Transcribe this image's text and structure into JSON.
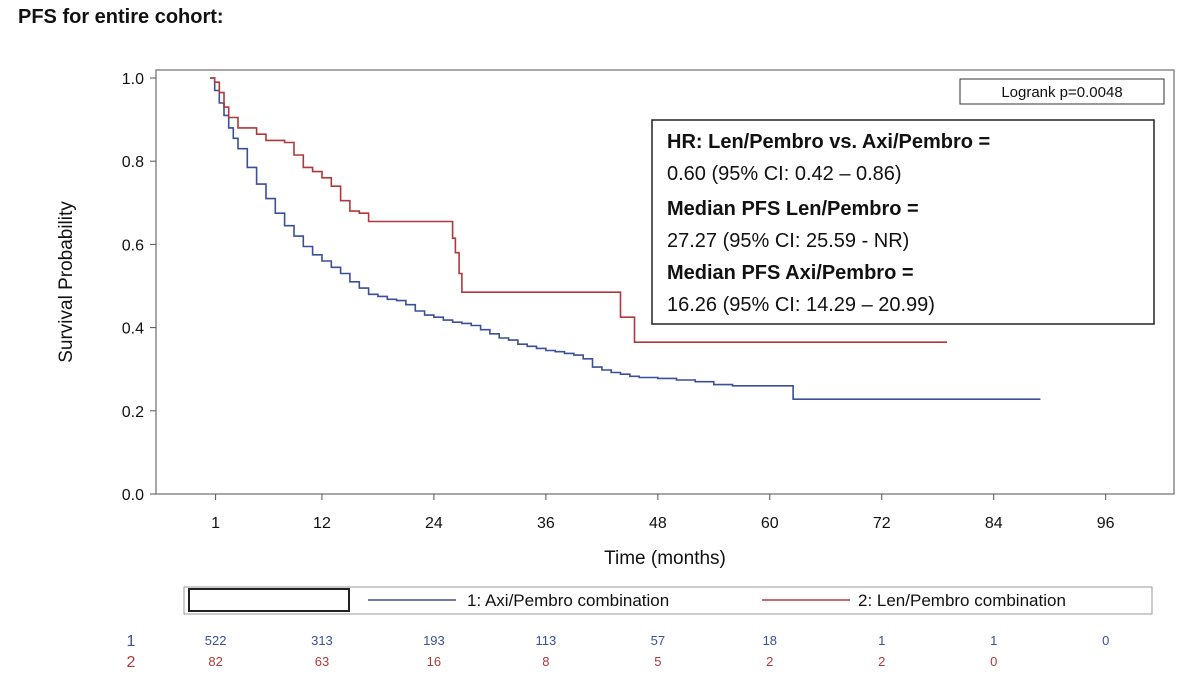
{
  "page": {
    "title": "PFS for entire cohort:"
  },
  "chart_data": {
    "type": "line",
    "title": "PFS for entire cohort:",
    "xlabel": "Time (months)",
    "ylabel": "Survival Probability",
    "xlim": [
      0,
      96
    ],
    "ylim": [
      0,
      1.0
    ],
    "x_ticks": [
      1,
      12,
      24,
      36,
      48,
      60,
      72,
      84,
      96
    ],
    "y_ticks": [
      "0.0",
      "0.2",
      "0.4",
      "0.6",
      "0.8",
      "1.0"
    ],
    "step": true,
    "series": [
      {
        "name": "1: Axi/Pembro combination",
        "color": "#3b4f9a",
        "x": [
          0,
          0.5,
          1,
          1.5,
          2,
          2.5,
          3,
          4,
          5,
          6,
          7,
          8,
          9,
          10,
          11,
          12,
          13,
          14,
          15,
          16,
          17,
          18,
          19,
          20,
          21,
          22,
          23,
          24,
          25,
          26,
          27,
          28,
          29,
          30,
          31,
          32,
          33,
          34,
          35,
          36,
          37,
          38,
          39,
          40,
          41,
          42,
          43,
          44,
          45,
          46,
          47,
          48,
          50,
          52,
          54,
          56,
          58,
          60,
          62,
          62.5,
          70,
          80,
          89
        ],
        "y": [
          1.0,
          0.97,
          0.94,
          0.91,
          0.88,
          0.855,
          0.83,
          0.785,
          0.745,
          0.71,
          0.675,
          0.645,
          0.62,
          0.595,
          0.575,
          0.56,
          0.545,
          0.53,
          0.51,
          0.495,
          0.48,
          0.475,
          0.468,
          0.465,
          0.455,
          0.44,
          0.43,
          0.425,
          0.418,
          0.413,
          0.41,
          0.405,
          0.395,
          0.385,
          0.375,
          0.37,
          0.36,
          0.355,
          0.35,
          0.345,
          0.342,
          0.338,
          0.334,
          0.325,
          0.305,
          0.298,
          0.292,
          0.288,
          0.283,
          0.28,
          0.28,
          0.278,
          0.274,
          0.27,
          0.263,
          0.26,
          0.26,
          0.26,
          0.26,
          0.228,
          0.228,
          0.228,
          0.228
        ]
      },
      {
        "name": "2: Len/Pembro combination",
        "color": "#b0383a",
        "x": [
          0,
          0.5,
          1,
          1.5,
          2,
          3,
          5,
          6,
          7,
          8,
          9,
          10,
          11,
          12,
          13,
          14,
          15,
          16,
          17,
          25,
          26,
          26.3,
          26.7,
          27,
          43,
          44,
          45.5,
          79
        ],
        "y": [
          1.0,
          0.99,
          0.965,
          0.93,
          0.905,
          0.88,
          0.865,
          0.85,
          0.85,
          0.845,
          0.815,
          0.785,
          0.775,
          0.76,
          0.74,
          0.705,
          0.68,
          0.675,
          0.655,
          0.655,
          0.615,
          0.58,
          0.53,
          0.485,
          0.485,
          0.425,
          0.365,
          0.365
        ]
      }
    ],
    "annotations": {
      "logrank": "Logrank p=0.0048",
      "stats": [
        {
          "label": "HR: Len/Pembro vs. Axi/Pembro =",
          "value": "0.60 (95% CI: 0.42 – 0.86)"
        },
        {
          "label": "Median PFS Len/Pembro =",
          "value": "27.27 (95% CI: 25.59 - NR)"
        },
        {
          "label": "Median PFS Axi/Pembro =",
          "value": "16.26 (95% CI: 14.29 – 20.99)"
        }
      ]
    },
    "legend": {
      "placement": "bottom",
      "items": [
        "1: Axi/Pembro combination",
        "2: Len/Pembro combination"
      ]
    },
    "risk_table": {
      "rows": [
        {
          "label": "1",
          "color": "#3b4f9a",
          "values": [
            "522",
            "313",
            "193",
            "113",
            "57",
            "18",
            "1",
            "1",
            "0"
          ]
        },
        {
          "label": "2",
          "color": "#b0383a",
          "values": [
            "82",
            "63",
            "16",
            "8",
            "5",
            "2",
            "2",
            "0",
            ""
          ]
        }
      ]
    }
  }
}
